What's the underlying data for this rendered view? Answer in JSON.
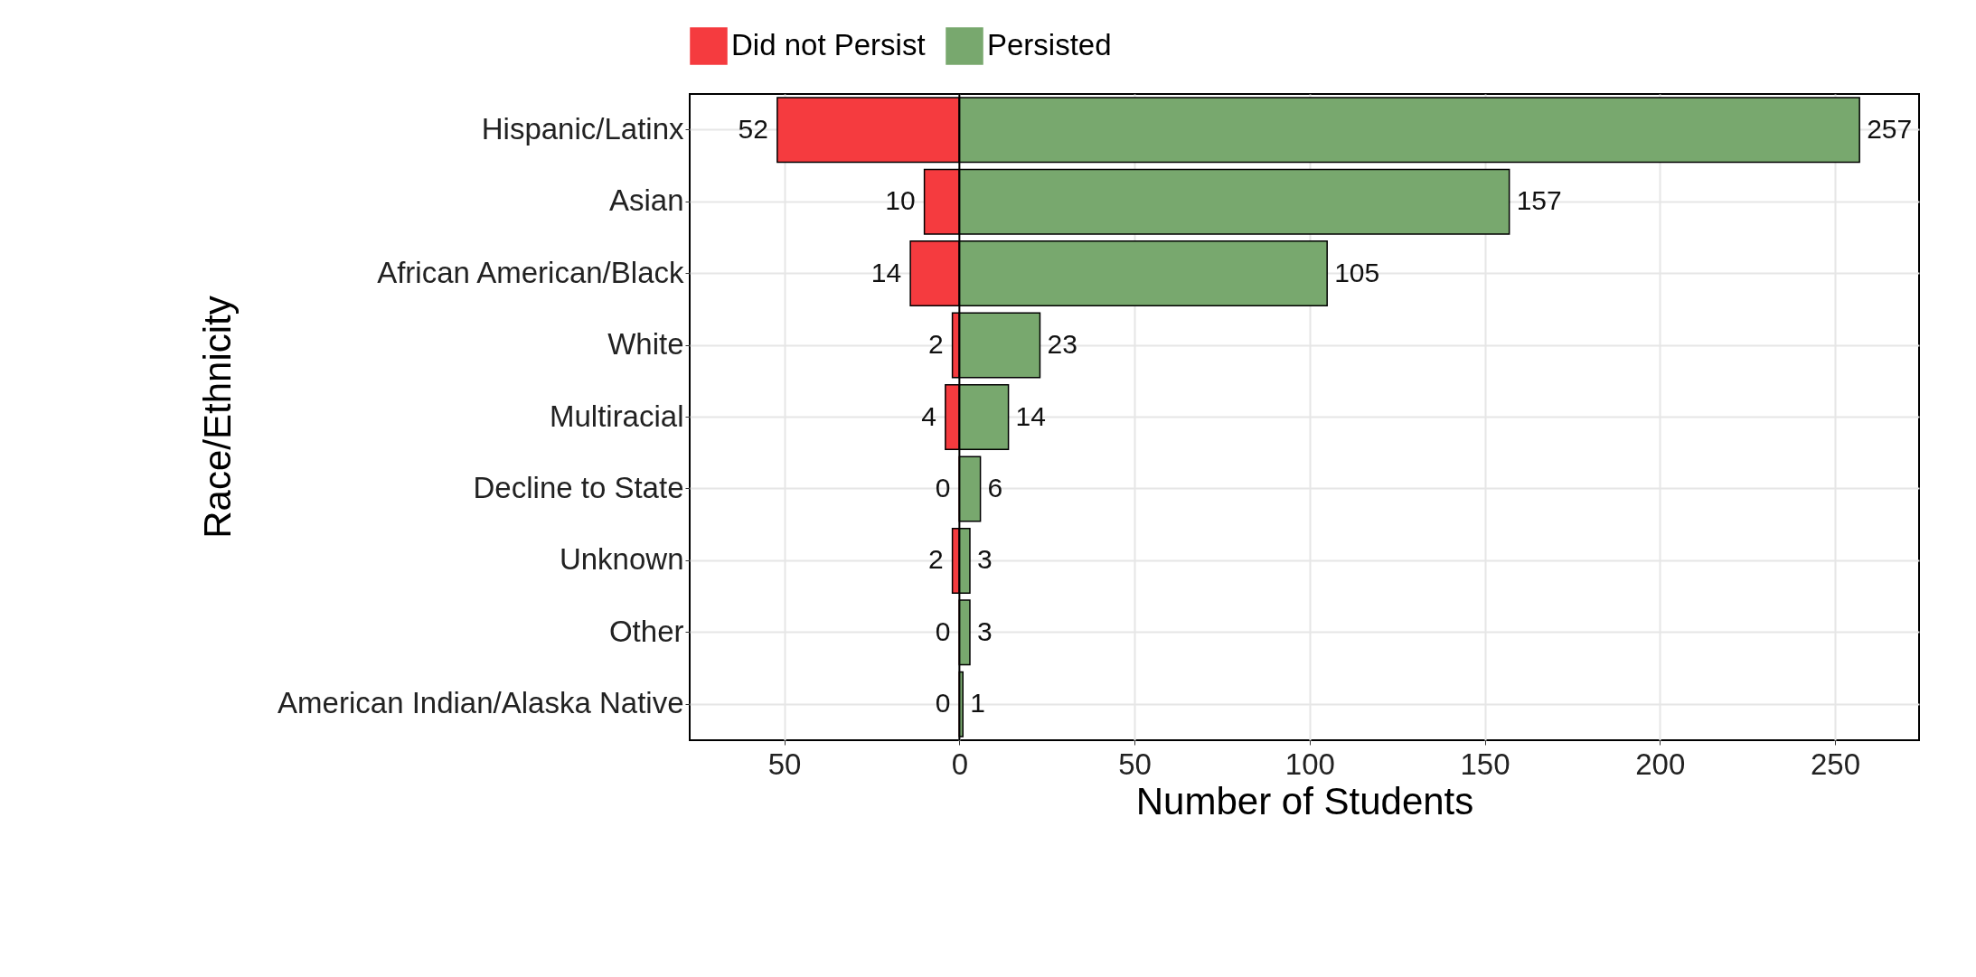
{
  "chart_data": {
    "type": "bar",
    "orientation": "horizontal",
    "xlabel": "Number of Students",
    "ylabel": "Race/Ethnicity",
    "categories": [
      "Hispanic/Latinx",
      "Asian",
      "African American/Black",
      "White",
      "Multiracial",
      "Decline to State",
      "Unknown",
      "Other",
      "American Indian/Alaska Native"
    ],
    "series": [
      {
        "name": "Did not Persist",
        "color": "#f53b3f",
        "values": [
          52,
          10,
          14,
          2,
          4,
          0,
          2,
          0,
          0
        ],
        "base": [
          -52,
          -10,
          -14,
          -2,
          -4,
          0,
          -2,
          0,
          0
        ],
        "value_labels": [
          "52",
          "10",
          "14",
          "2",
          "4",
          "0",
          "2",
          "0",
          "0"
        ]
      },
      {
        "name": "Persisted",
        "color": "#78a86e",
        "values": [
          257,
          157,
          105,
          23,
          14,
          6,
          3,
          3,
          1
        ],
        "value_labels": [
          "257",
          "157",
          "105",
          "23",
          "14",
          "6",
          "3",
          "3",
          "1"
        ]
      }
    ],
    "xlim": [
      -77,
      274
    ],
    "xticks": [
      {
        "value": -50,
        "label": "50"
      },
      0,
      50,
      100,
      150,
      200,
      250
    ],
    "ref_lines": [
      {
        "axis": "x",
        "value": 0,
        "color": "#000000"
      }
    ],
    "grid": true,
    "legend": "top"
  }
}
